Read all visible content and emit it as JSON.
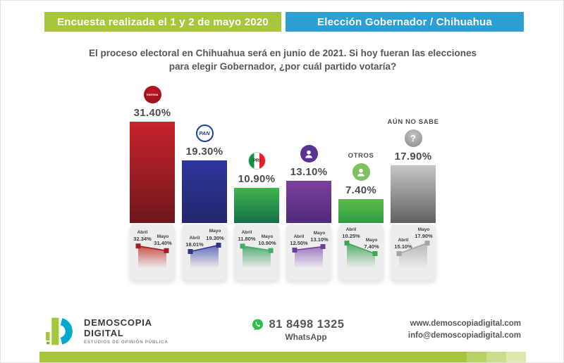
{
  "header": {
    "left": {
      "text": "Encuesta realizada el 1 y 2 de mayo 2020",
      "bg": "#a6c73c",
      "color": "#ffffff"
    },
    "right": {
      "text": "Elección Gobernador / Chihuahua",
      "bg": "#2d9fd4",
      "color": "#ffffff"
    }
  },
  "title": {
    "text": "El proceso electoral en Chihuahua será en junio de 2021. Si hoy fueran las elecciones para elegir Gobernador, ¿por cuál partido votaría?"
  },
  "chart_data": {
    "type": "bar",
    "title": "El proceso electoral en Chihuahua será en junio de 2021. Si hoy fueran las elecciones para elegir Gobernador, ¿por cuál partido votaría?",
    "unit": "%",
    "categories": [
      "MORENA",
      "PAN",
      "PRI",
      "",
      "OTROS",
      "AÚN NO SABE"
    ],
    "series": [
      {
        "name": "Abril",
        "values": [
          32.34,
          18.01,
          11.8,
          12.5,
          10.25,
          15.1
        ]
      },
      {
        "name": "Mayo",
        "values": [
          31.4,
          19.3,
          10.9,
          13.1,
          7.4,
          17.9
        ]
      }
    ],
    "columns": [
      {
        "category": "MORENA",
        "heading": "",
        "icon_text": "morena",
        "value": 31.4,
        "value_label": "31.40%",
        "month_a": "Abril",
        "abril": "32.34%",
        "abril_value": 32.34,
        "month_m": "Mayo",
        "mayo": "31.40%",
        "mayo_value": 31.4,
        "colors": {
          "top": "#c7242b",
          "bottom": "#6e171c",
          "marker": "#9c2025",
          "fill": "#c94a42"
        }
      },
      {
        "category": "PAN",
        "heading": "",
        "icon_text": "PAN",
        "value": 19.3,
        "value_label": "19.30%",
        "month_a": "Abril",
        "abril": "18.01%",
        "abril_value": 18.01,
        "month_m": "Mayo",
        "mayo": "19.30%",
        "mayo_value": 19.3,
        "colors": {
          "top": "#2e369d",
          "bottom": "#23276b",
          "marker": "#2d3590",
          "fill": "#5c66b6"
        }
      },
      {
        "category": "PRI",
        "heading": "",
        "icon_text": "PRI",
        "value": 10.9,
        "value_label": "10.90%",
        "month_a": "Abril",
        "abril": "11.80%",
        "abril_value": 11.8,
        "month_m": "Mayo",
        "mayo": "10.90%",
        "mayo_value": 10.9,
        "colors": {
          "top": "#3eb64c",
          "bottom": "#17704a",
          "marker": "#3fae62",
          "fill": "#4da86d"
        }
      },
      {
        "category": "",
        "heading": "",
        "icon_text": "",
        "value": 13.1,
        "value_label": "13.10%",
        "month_a": "Abril",
        "abril": "12.50%",
        "abril_value": 12.5,
        "month_m": "Mayo",
        "mayo": "13.10%",
        "mayo_value": 13.1,
        "colors": {
          "top": "#7d3f9d",
          "bottom": "#4f2b79",
          "marker": "#6f3e97",
          "fill": "#9a74bd"
        }
      },
      {
        "category": "OTROS",
        "heading": "OTROS",
        "icon_text": "",
        "value": 7.4,
        "value_label": "7.40%",
        "month_a": "Abril",
        "abril": "10.25%",
        "abril_value": 10.25,
        "month_m": "Mayo",
        "mayo": "7.40%",
        "mayo_value": 7.4,
        "colors": {
          "top": "#5cbc49",
          "bottom": "#2f9b44",
          "marker": "#3da758",
          "fill": "#4aa95f"
        }
      },
      {
        "category": "AÚN NO SABE",
        "heading": "AÚN NO SABE",
        "icon_text": "?",
        "value": 17.9,
        "value_label": "17.90%",
        "month_a": "Abril",
        "abril": "15.10%",
        "abril_value": 15.1,
        "month_m": "Mayo",
        "mayo": "17.90%",
        "mayo_value": 17.9,
        "colors": {
          "top": "#c6c6c6",
          "bottom": "#606060",
          "marker": "#a5a5a5",
          "fill": "#b4b4b4"
        }
      }
    ]
  },
  "footer": {
    "logo": {
      "name_line1": "DEMOSCOPIA",
      "name_line2": "DIGITAL",
      "tagline": "ESTUDIOS DE OPINIÓN PÚBLICA",
      "teal": "#00a9ce",
      "green": "#a6c73c"
    },
    "whatsapp": {
      "phone": "81 8498 1325",
      "label": "WhatsApp",
      "green": "#2ebd4f"
    },
    "links": {
      "web": "www.demoscopiadigital.com",
      "email": "info@demoscopiadigital.com"
    },
    "bottom_bar_colors": [
      "#a6c73c",
      "#b7d266",
      "#c9dd8c",
      "#dbe8af"
    ]
  }
}
